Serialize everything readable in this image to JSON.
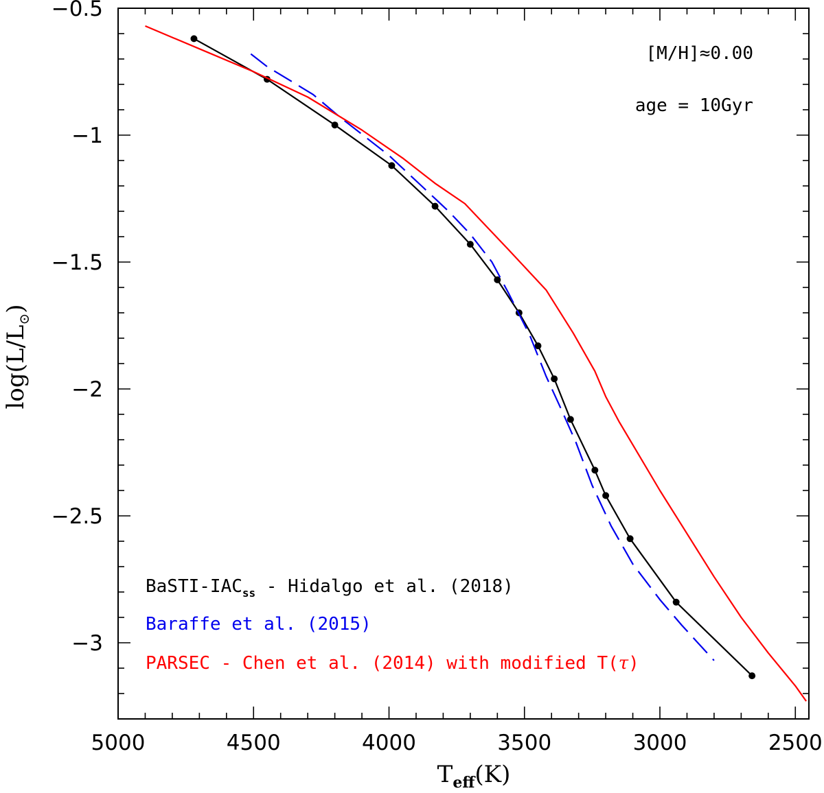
{
  "chart_data": {
    "type": "line",
    "title": "",
    "xlabel": {
      "main": "T",
      "sub": "eff",
      "unit": "(K)"
    },
    "ylabel": {
      "prefix": "log(L/L",
      "sub": "⊙",
      "suffix": ")"
    },
    "xlim": [
      5000,
      2450
    ],
    "ylim": [
      -3.3,
      -0.5
    ],
    "x_reversed": true,
    "x_ticks": [
      5000,
      4500,
      4000,
      3500,
      3000,
      2500
    ],
    "x_tick_labels": [
      "5000",
      "4500",
      "4000",
      "3500",
      "3000",
      "2500"
    ],
    "y_ticks": [
      -0.5,
      -1,
      -1.5,
      -2,
      -2.5,
      -3
    ],
    "y_tick_labels": [
      "−0.5",
      "−1",
      "−1.5",
      "−2",
      "−2.5",
      "−3"
    ],
    "x_minor_step": 100,
    "y_minor_step": 0.1,
    "annotations": [
      "[M/H]≈0.00",
      "age = 10Gyr"
    ],
    "series": [
      {
        "name": "BaSTI-IAC",
        "name_sub": "ss",
        "name_suffix": " - Hidalgo et al. (2018)",
        "color": "#000000",
        "style": "solid-with-markers",
        "x": [
          4720,
          4450,
          4200,
          3990,
          3830,
          3700,
          3600,
          3520,
          3450,
          3390,
          3330,
          3240,
          3200,
          3110,
          2940,
          2660
        ],
        "y": [
          -0.62,
          -0.78,
          -0.96,
          -1.12,
          -1.28,
          -1.43,
          -1.57,
          -1.7,
          -1.83,
          -1.96,
          -2.12,
          -2.32,
          -2.42,
          -2.59,
          -2.84,
          -3.13
        ]
      },
      {
        "name": "Baraffe et al. (2015)",
        "color": "#0000ee",
        "style": "dashed",
        "x": [
          4510,
          4450,
          4280,
          4180,
          4000,
          3880,
          3780,
          3700,
          3620,
          3560,
          3480,
          3420,
          3360,
          3310,
          3250,
          3180,
          3100,
          3000,
          2920,
          2800
        ],
        "y": [
          -0.68,
          -0.73,
          -0.84,
          -0.93,
          -1.08,
          -1.2,
          -1.3,
          -1.39,
          -1.5,
          -1.62,
          -1.79,
          -1.95,
          -2.09,
          -2.21,
          -2.38,
          -2.54,
          -2.69,
          -2.83,
          -2.93,
          -3.07
        ]
      },
      {
        "name": "PARSEC - Chen et al. (2014) with modified T(",
        "name_tau": "τ",
        "name_suffix": ")",
        "color": "#ff0000",
        "style": "solid",
        "x": [
          4900,
          4700,
          4500,
          4300,
          4100,
          3950,
          3830,
          3720,
          3560,
          3420,
          3320,
          3240,
          3200,
          3150,
          3100,
          3000,
          2900,
          2800,
          2700,
          2600,
          2500,
          2460
        ],
        "y": [
          -0.57,
          -0.66,
          -0.75,
          -0.85,
          -0.98,
          -1.09,
          -1.19,
          -1.27,
          -1.45,
          -1.61,
          -1.78,
          -1.93,
          -2.03,
          -2.13,
          -2.22,
          -2.4,
          -2.57,
          -2.74,
          -2.9,
          -3.04,
          -3.17,
          -3.23
        ]
      }
    ]
  }
}
